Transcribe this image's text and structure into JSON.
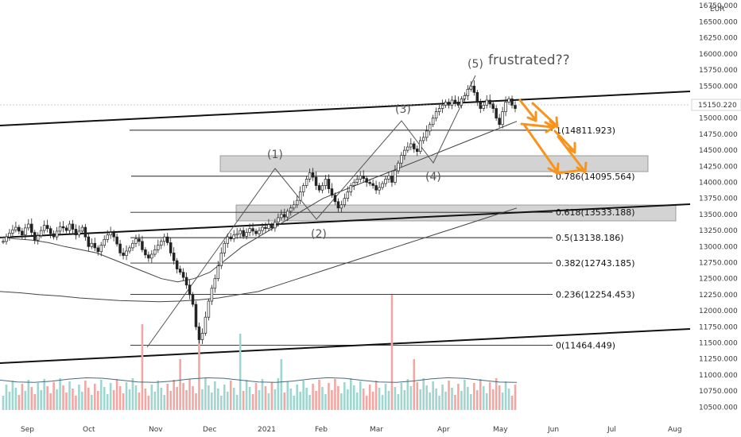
{
  "chart_data": {
    "type": "candlestick",
    "currency_label": "EUR",
    "last_price": "15150.220",
    "y_ticks": [
      "16750.000",
      "16500.000",
      "16250.000",
      "16000.000",
      "15750.000",
      "15500.000",
      "15250.000",
      "15000.000",
      "14750.000",
      "14500.000",
      "14250.000",
      "14000.000",
      "13750.000",
      "13500.000",
      "13250.000",
      "13000.000",
      "12750.000",
      "12500.000",
      "12250.000",
      "12000.000",
      "11750.000",
      "11500.000",
      "11250.000",
      "11000.000",
      "10750.000",
      "10500.000"
    ],
    "y_range": [
      10430,
      16790
    ],
    "x_labels": [
      "Sep",
      "Oct",
      "Nov",
      "Dec",
      "2021",
      "Feb",
      "Mar",
      "Apr",
      "May",
      "Jun",
      "Jul",
      "Aug"
    ],
    "fib_levels": [
      {
        "label": "1(14811.923)",
        "value": 14811.923
      },
      {
        "label": "0.786(14095.564)",
        "value": 14095.564
      },
      {
        "label": "0.618(13533.188)",
        "value": 13533.188
      },
      {
        "label": "0.5(13138.186)",
        "value": 13138.186
      },
      {
        "label": "0.382(12743.185)",
        "value": 12743.185
      },
      {
        "label": "0.236(12254.453)",
        "value": 12254.453
      },
      {
        "label": "0(11464.449)",
        "value": 11464.449
      }
    ],
    "wave_labels": [
      "(1)",
      "(2)",
      "(3)",
      "(4)",
      "(5)"
    ],
    "annotation": "frustrated??",
    "series": [
      {
        "name": "price",
        "values": [
          13080,
          13150,
          13210,
          13260,
          13300,
          13240,
          13180,
          13290,
          13350,
          13220,
          13100,
          13170,
          13250,
          13330,
          13280,
          13200,
          13150,
          13240,
          13310,
          13290,
          13250,
          13350,
          13270,
          13180,
          13240,
          13300,
          13150,
          13000,
          13050,
          12980,
          12920,
          13020,
          13110,
          13180,
          13220,
          13150,
          13040,
          12900,
          12860,
          12930,
          12980,
          13050,
          13120,
          13080,
          12950,
          12870,
          12820,
          12880,
          12950,
          13020,
          13080,
          13150,
          13060,
          12900,
          12780,
          12650,
          12600,
          12520,
          12400,
          12250,
          12100,
          11750,
          11550,
          11650,
          11900,
          12150,
          12350,
          12500,
          12700,
          12900,
          13050,
          13150,
          13120,
          13180,
          13200,
          13250,
          13160,
          13220,
          13280,
          13240,
          13200,
          13250,
          13300,
          13280,
          13340,
          13290,
          13380,
          13450,
          13500,
          13460,
          13550,
          13600,
          13650,
          13720,
          13850,
          13950,
          14050,
          14150,
          14080,
          13950,
          13880,
          13950,
          14050,
          13900,
          13800,
          13700,
          13600,
          13650,
          13750,
          13850,
          13950,
          14000,
          14050,
          14100,
          14060,
          14000,
          13980,
          13950,
          13880,
          13920,
          13980,
          14050,
          14100,
          14000,
          14180,
          14300,
          14420,
          14500,
          14550,
          14600,
          14520,
          14480,
          14650,
          14700,
          14800,
          14900,
          15000,
          15100,
          15150,
          15200,
          15250,
          15200,
          15280,
          15250,
          15200,
          15300,
          15350,
          15450,
          15500,
          15400,
          15250,
          15150,
          15200,
          15280,
          15220,
          15150,
          15000,
          14900,
          15100,
          15250,
          15300,
          15200,
          15150
        ]
      }
    ],
    "ma_short": [
      13150,
      13120,
      13100,
      13060,
      13000,
      12950,
      12900,
      12800,
      12700,
      12600,
      12500,
      12450,
      12500,
      12600,
      12800,
      13000,
      13150,
      13300,
      13450,
      13600,
      13750,
      13850,
      13950,
      14050,
      14150,
      14250,
      14350,
      14450,
      14550,
      14650,
      14750,
      14850,
      14950
    ],
    "ma_long": [
      12300,
      12280,
      12250,
      12230,
      12200,
      12180,
      12160,
      12150,
      12140,
      12150,
      12170,
      12200,
      12250,
      12300,
      12400,
      12500,
      12600,
      12700,
      12800,
      12900,
      13000,
      13100,
      13200,
      13300,
      13400,
      13500,
      13600
    ],
    "volume_avg_level": 10920
  }
}
